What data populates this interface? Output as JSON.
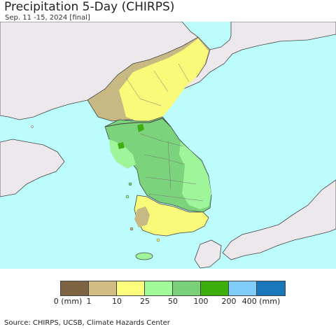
{
  "header": {
    "title": "Precipitation 5-Day (CHIRPS)",
    "subtitle": "Sep. 11 -15, 2024 [final]"
  },
  "map": {
    "colors": {
      "sea": "#bdfcfc",
      "foreign_land": "#ece8ec",
      "brown_dry": "#c8b884",
      "yellow": "#fafa7a",
      "light_green": "#9ef59a",
      "green": "#7bd37b",
      "dark_green": "#3fae13",
      "border": "#444444"
    }
  },
  "legend": {
    "colors": [
      "#7d6342",
      "#d1bd84",
      "#fefe7c",
      "#9ffa97",
      "#78d179",
      "#3cae0c",
      "#80cdfa",
      "#1b77bb"
    ],
    "ticks": [
      "0 (mm)",
      "1",
      "10",
      "25",
      "50",
      "100",
      "200",
      "400 (mm)"
    ]
  },
  "footer": {
    "source": "Source: CHIRPS, UCSB, Climate Hazards Center"
  }
}
